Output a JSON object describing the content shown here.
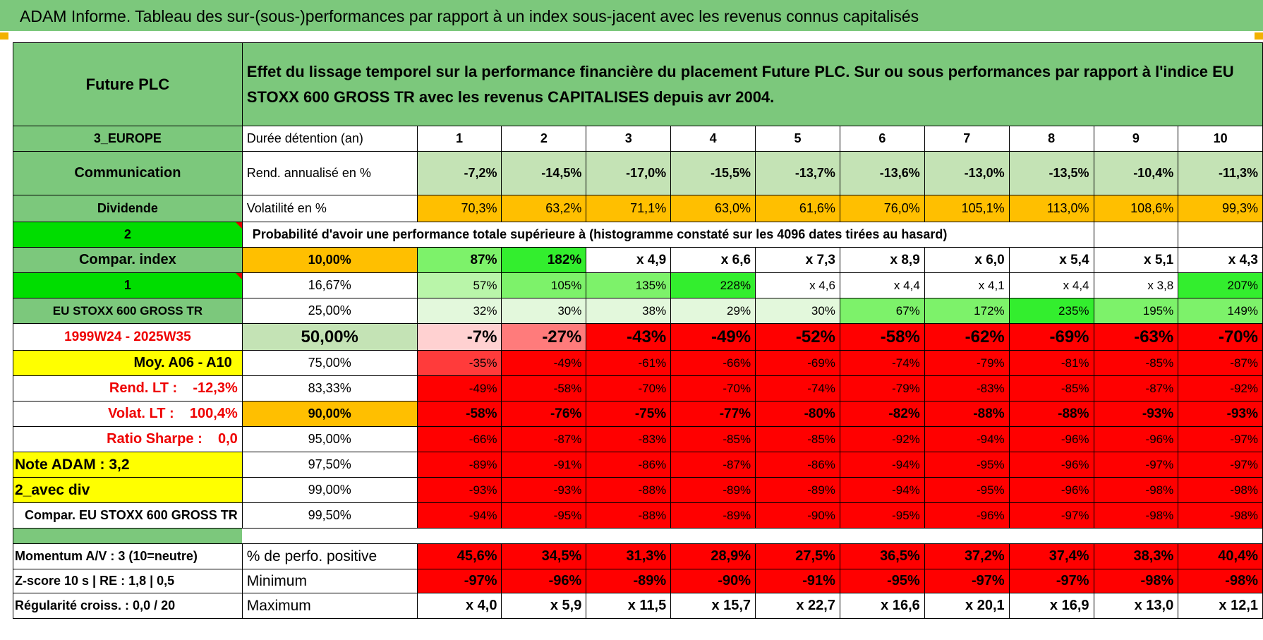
{
  "banner": "ADAM Informe. Tableau des sur-(sous-)performances par rapport à un index sous-jacent avec les revenus connus capitalisés",
  "header": {
    "fund_name": "Future PLC",
    "description": "Effet du lissage temporel sur la performance financière du placement Future PLC. Sur ou sous performances par rapport à l'indice EU STOXX 600 GROSS TR avec les revenus CAPITALISES depuis avr 2004."
  },
  "side": {
    "region": "3_EUROPE",
    "sector": "Communication",
    "income_type": "Dividende",
    "flag_value": "2",
    "compar_label": "Compar. index",
    "index_number": "1",
    "index_name": "EU STOXX 600 GROSS TR",
    "period": "1999W24 - 2025W35",
    "moy": "Moy. A06 - A10",
    "rend_lt": "Rend. LT :    -12,3%",
    "volat_lt": "Volat. LT :    100,4%",
    "sharpe": "Ratio Sharpe :    0,0",
    "note": "Note ADAM : 3,2",
    "avec_div": "2_avec div",
    "compar_index": "Compar. EU STOXX 600 GROSS TR",
    "momentum": "Momentum A/V : 3 (10=neutre)",
    "zscore": "Z-score 10 s | RE : 1,8 | 0,5",
    "regularite": "Régularité croiss. : 0,0 / 20"
  },
  "rows": {
    "duree": {
      "label": "Durée détention (an)",
      "values": [
        "1",
        "2",
        "3",
        "4",
        "5",
        "6",
        "7",
        "8",
        "9",
        "10"
      ]
    },
    "rend": {
      "label": "Rend. annualisé en %",
      "values": [
        "-7,2%",
        "-14,5%",
        "-17,0%",
        "-15,5%",
        "-13,7%",
        "-13,6%",
        "-13,0%",
        "-13,5%",
        "-10,4%",
        "-11,3%"
      ]
    },
    "volat": {
      "label": "Volatilité en %",
      "values": [
        "70,3%",
        "63,2%",
        "71,1%",
        "63,0%",
        "61,6%",
        "76,0%",
        "105,1%",
        "113,0%",
        "108,6%",
        "99,3%"
      ]
    },
    "proba_title": "Probabilité d'avoir une performance totale supérieure à (histogramme constaté sur les 4096 dates tirées au hasard)",
    "prob": [
      {
        "pct": "10,00%",
        "values": [
          "87%",
          "182%",
          "x 4,9",
          "x 6,6",
          "x 7,3",
          "x 8,9",
          "x 6,0",
          "x 5,4",
          "x 5,1",
          "x 4,3"
        ]
      },
      {
        "pct": "16,67%",
        "values": [
          "57%",
          "105%",
          "135%",
          "228%",
          "x 4,6",
          "x 4,4",
          "x 4,1",
          "x 4,4",
          "x 3,8",
          "207%"
        ]
      },
      {
        "pct": "25,00%",
        "values": [
          "32%",
          "30%",
          "38%",
          "29%",
          "30%",
          "67%",
          "172%",
          "235%",
          "195%",
          "149%"
        ]
      },
      {
        "pct": "50,00%",
        "values": [
          "-7%",
          "-27%",
          "-43%",
          "-49%",
          "-52%",
          "-58%",
          "-62%",
          "-69%",
          "-63%",
          "-70%"
        ]
      },
      {
        "pct": "75,00%",
        "values": [
          "-35%",
          "-49%",
          "-61%",
          "-66%",
          "-69%",
          "-74%",
          "-79%",
          "-81%",
          "-85%",
          "-87%"
        ]
      },
      {
        "pct": "83,33%",
        "values": [
          "-49%",
          "-58%",
          "-70%",
          "-70%",
          "-74%",
          "-79%",
          "-83%",
          "-85%",
          "-87%",
          "-92%"
        ]
      },
      {
        "pct": "90,00%",
        "values": [
          "-58%",
          "-76%",
          "-75%",
          "-77%",
          "-80%",
          "-82%",
          "-88%",
          "-88%",
          "-93%",
          "-93%"
        ]
      },
      {
        "pct": "95,00%",
        "values": [
          "-66%",
          "-87%",
          "-83%",
          "-85%",
          "-85%",
          "-92%",
          "-94%",
          "-96%",
          "-96%",
          "-97%"
        ]
      },
      {
        "pct": "97,50%",
        "values": [
          "-89%",
          "-91%",
          "-86%",
          "-87%",
          "-86%",
          "-94%",
          "-95%",
          "-96%",
          "-97%",
          "-97%"
        ]
      },
      {
        "pct": "99,00%",
        "values": [
          "-93%",
          "-93%",
          "-88%",
          "-89%",
          "-89%",
          "-94%",
          "-95%",
          "-96%",
          "-98%",
          "-98%"
        ]
      },
      {
        "pct": "99,50%",
        "values": [
          "-94%",
          "-95%",
          "-88%",
          "-89%",
          "-90%",
          "-95%",
          "-96%",
          "-97%",
          "-98%",
          "-98%"
        ]
      }
    ],
    "perf_pos": {
      "label": "% de perfo. positive",
      "values": [
        "45,6%",
        "34,5%",
        "31,3%",
        "28,9%",
        "27,5%",
        "36,5%",
        "37,2%",
        "37,4%",
        "38,3%",
        "40,4%"
      ]
    },
    "minimum": {
      "label": "Minimum",
      "values": [
        "-97%",
        "-96%",
        "-89%",
        "-90%",
        "-91%",
        "-95%",
        "-97%",
        "-97%",
        "-98%",
        "-98%"
      ]
    },
    "maximum": {
      "label": "Maximum",
      "values": [
        "x 4,0",
        "x 5,9",
        "x 11,5",
        "x 15,7",
        "x 22,7",
        "x 16,6",
        "x 20,1",
        "x 16,9",
        "x 13,0",
        "x 12,1"
      ]
    }
  },
  "colors": {
    "header_green": "#7cc87c",
    "bright_green": "#00dd00",
    "orange": "#ffbf00",
    "yellow": "#ffff00",
    "light_green": "#c4e3b5",
    "red": "#ff0000"
  }
}
